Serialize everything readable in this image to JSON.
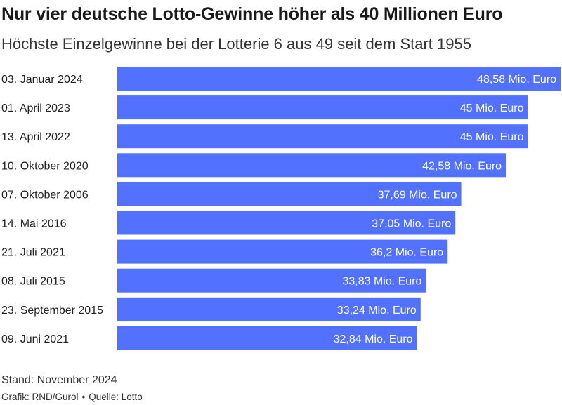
{
  "title": "Nur vier deutsche Lotto-Gewinne höher als 40 Millionen Euro",
  "subtitle": "Höchste Einzelgewinne bei der Lotterie 6 aus 49 seit dem Start 1955",
  "note": "Stand: November 2024",
  "credits": {
    "grafik": "Grafik: RND/Gurol",
    "separator": "•",
    "quelle": "Quelle: Lotto"
  },
  "colors": {
    "bar": "#5271ff",
    "label": "#ffffff",
    "text": "#222222"
  },
  "chart_data": {
    "type": "bar",
    "orientation": "horizontal",
    "categories": [
      "03. Januar 2024",
      "01. April 2023",
      "13. April 2022",
      "10. Oktober 2020",
      "07. Oktober 2006",
      "14. Mai 2016",
      "21. Juli 2021",
      "08. Juli 2015",
      "23. September 2015",
      "09. Juni 2021"
    ],
    "values": [
      48.58,
      45,
      45,
      42.58,
      37.69,
      37.05,
      36.2,
      33.83,
      33.24,
      32.84
    ],
    "labels": [
      "48,58 Mio. Euro",
      "45 Mio. Euro",
      "45 Mio. Euro",
      "42,58 Mio. Euro",
      "37,69 Mio. Euro",
      "37,05 Mio. Euro",
      "36,2 Mio. Euro",
      "33,83 Mio. Euro",
      "33,24 Mio. Euro",
      "32,84 Mio. Euro"
    ],
    "xlim": [
      0,
      48.58
    ],
    "grid": false,
    "legend": "none"
  }
}
